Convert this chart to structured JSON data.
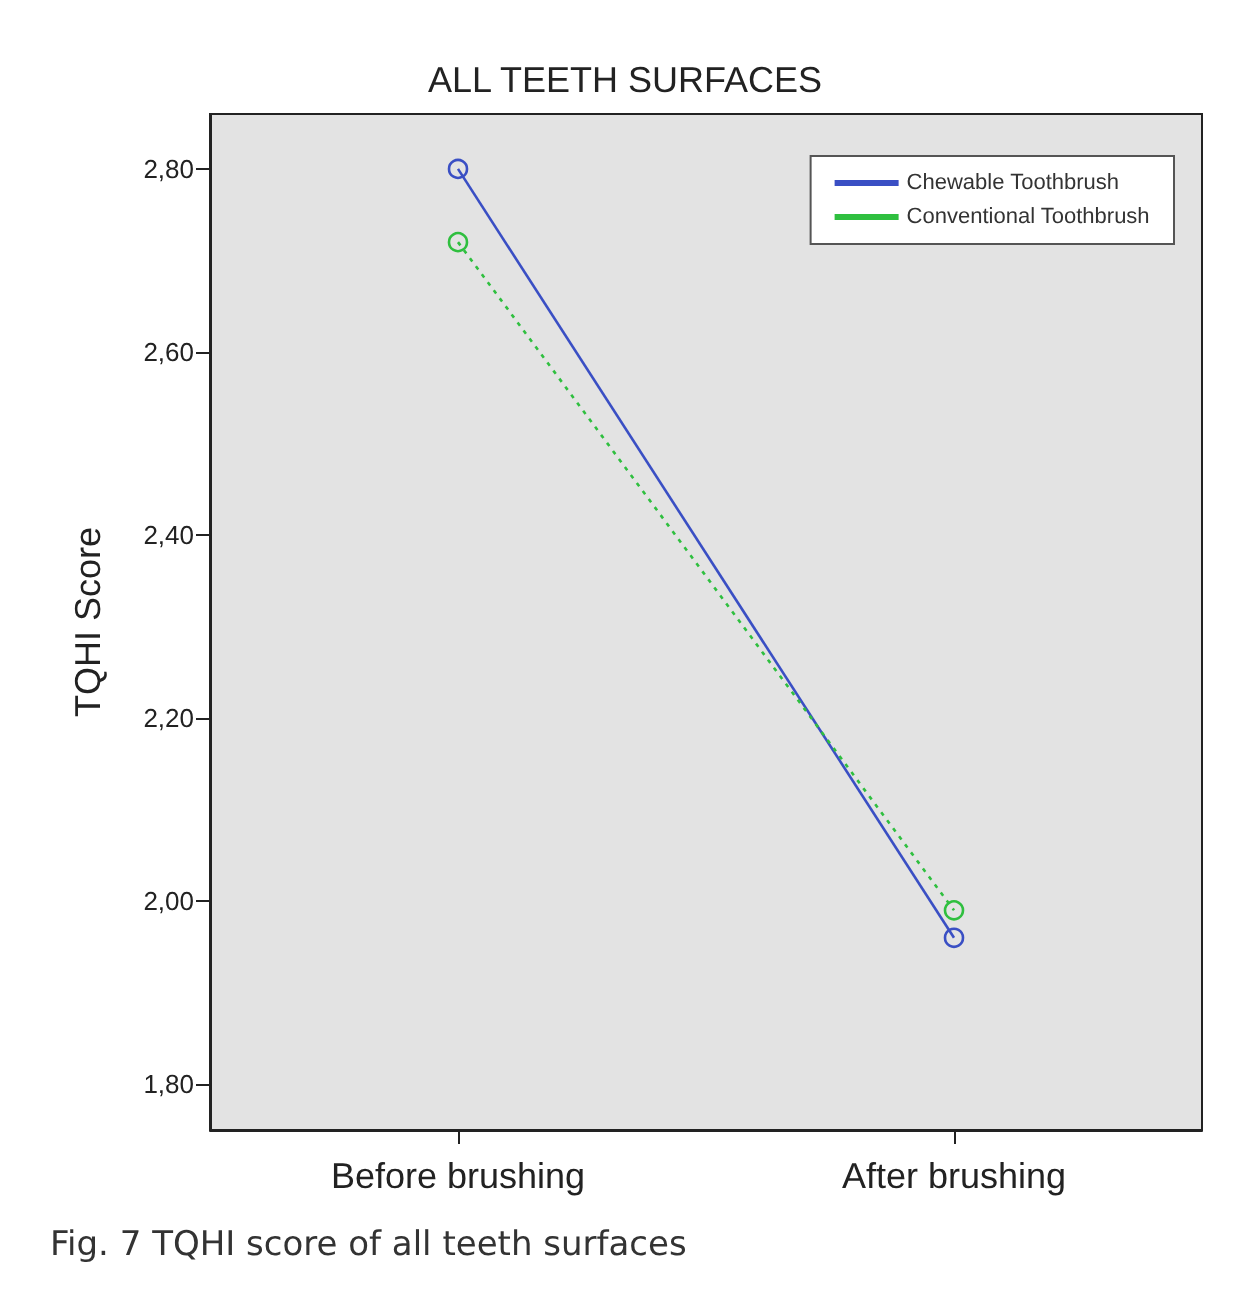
{
  "chart_data": {
    "type": "line",
    "title": "ALL TEETH SURFACES",
    "ylabel": "TQHI Score",
    "categories": [
      "Before brushing",
      "After brushing"
    ],
    "series": [
      {
        "name": "Chewable Toothbrush",
        "color": "#3a4fc4",
        "values": [
          2.8,
          1.96
        ],
        "line_style": "solid"
      },
      {
        "name": "Conventional Toothbrush",
        "color": "#2fbf3f",
        "values": [
          2.72,
          1.99
        ],
        "line_style": "dotted"
      }
    ],
    "ylim": [
      1.75,
      2.86
    ],
    "yticks": [
      {
        "value": 1.8,
        "label": "1,80"
      },
      {
        "value": 2.0,
        "label": "2,00"
      },
      {
        "value": 2.2,
        "label": "2,20"
      },
      {
        "value": 2.4,
        "label": "2,40"
      },
      {
        "value": 2.6,
        "label": "2,60"
      },
      {
        "value": 2.8,
        "label": "2,80"
      }
    ],
    "grid": false,
    "legend": "top right",
    "marker": "circle",
    "annotations": [
      "Fig. 7 TQHI score of all teeth surfaces"
    ]
  }
}
